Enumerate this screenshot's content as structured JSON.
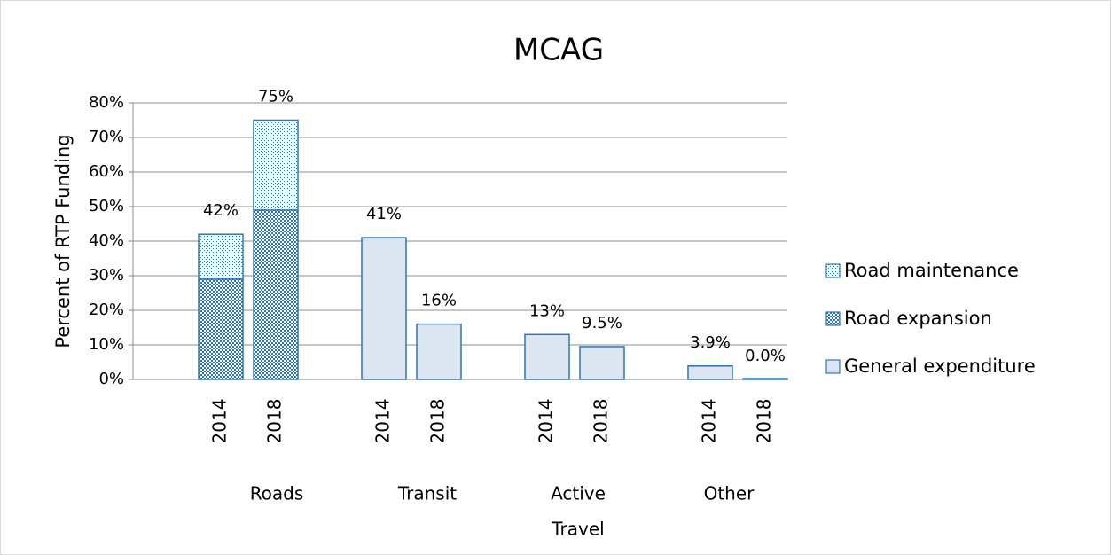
{
  "chart_data": {
    "type": "stacked_bar",
    "title": "MCAG",
    "y_axis_label": "Percent of RTP Funding",
    "groups": [
      {
        "name": [
          "Roads"
        ],
        "categories": [
          "2014",
          "2018"
        ]
      },
      {
        "name": [
          "Transit"
        ],
        "categories": [
          "2014",
          "2018"
        ]
      },
      {
        "name": [
          "Active",
          "Travel"
        ],
        "categories": [
          "2014",
          "2018"
        ]
      },
      {
        "name": [
          "Other"
        ],
        "categories": [
          "2014",
          "2018"
        ]
      }
    ],
    "series": [
      {
        "name": "Road maintenance",
        "color": "#2e74b5",
        "pattern": "dots",
        "values": [
          13,
          26,
          null,
          null,
          null,
          null,
          null,
          null
        ]
      },
      {
        "name": "Road expansion",
        "color": "#2e74b5",
        "pattern": "crosshatch",
        "values": [
          29,
          49,
          null,
          null,
          null,
          null,
          null,
          null
        ]
      },
      {
        "name": "General expenditure",
        "color": "#2e74b5",
        "pattern": "solid",
        "values": [
          null,
          null,
          41,
          16,
          13,
          9.5,
          3.9,
          0
        ]
      }
    ],
    "totals": {
      "values": [
        42,
        75,
        41,
        16,
        13,
        9.5,
        3.9,
        0
      ],
      "value_labels": [
        "42%",
        "75%",
        "41%",
        "16%",
        "13%",
        "9.5%",
        "3.9%",
        "0.0%"
      ]
    },
    "ylim": [
      0,
      80
    ],
    "yticks": [
      {
        "value": 0,
        "label": "0%"
      },
      {
        "value": 10,
        "label": "10%"
      },
      {
        "value": 20,
        "label": "20%"
      },
      {
        "value": 30,
        "label": "30%"
      },
      {
        "value": 40,
        "label": "40%"
      },
      {
        "value": 50,
        "label": "50%"
      },
      {
        "value": 60,
        "label": "60%"
      },
      {
        "value": 70,
        "label": "70%"
      },
      {
        "value": 80,
        "label": "80%"
      }
    ],
    "grid": true,
    "legend": "right"
  }
}
